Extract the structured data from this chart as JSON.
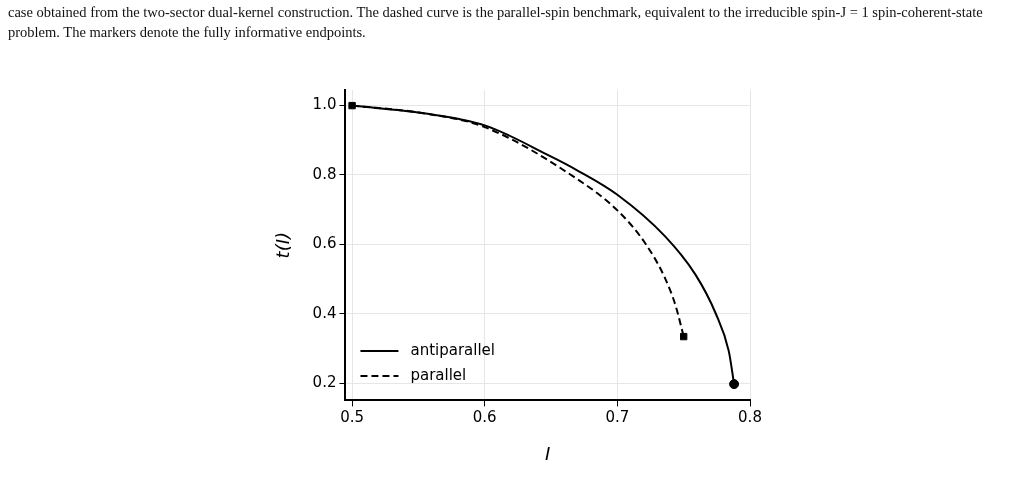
{
  "chart_data": {
    "type": "line",
    "xlabel": "I",
    "ylabel": "t(I)",
    "annotations": [
      "case obtained from the two-sector dual-kernel construction. The dashed curve is the parallel-spin benchmark, equivalent to the irreducible spin-J = 1 spin-coherent-state problem. The markers denote the fully informative endpoints."
    ],
    "xlim": [
      0.495,
      0.8
    ],
    "xticks": [
      0.5,
      0.6,
      0.7,
      0.8
    ],
    "ylim": [
      0.15,
      1.045
    ],
    "yticks": [
      0.2,
      0.4,
      0.6,
      0.8,
      {
        "value": 1,
        "label": "1.0"
      }
    ],
    "grid": true,
    "legend": "bottom left",
    "marker": "none",
    "series": [
      {
        "name": "antiparallel",
        "color": "#000000",
        "line_style": "solid",
        "x": [
          0.5,
          0.554,
          0.6,
          0.649,
          0.669,
          0.7,
          0.736,
          0.759,
          0.774,
          0.784,
          0.788
        ],
        "values": [
          1.0,
          0.978,
          0.943,
          0.855,
          0.815,
          0.743,
          0.623,
          0.512,
          0.402,
          0.292,
          0.197
        ]
      },
      {
        "name": "parallel",
        "color": "#000000",
        "line_style": "dashed",
        "x": [
          0.5,
          0.554,
          0.6,
          0.669,
          0.7,
          0.721,
          0.736,
          0.744,
          0.75
        ],
        "values": [
          1.0,
          0.978,
          0.938,
          0.79,
          0.698,
          0.603,
          0.502,
          0.422,
          0.334
        ]
      },
      {
        "type": "scatter",
        "color": "#000000",
        "marker": "square",
        "x": [
          0.5,
          0.75
        ],
        "values": [
          1.0,
          0.334
        ]
      },
      {
        "type": "scatter",
        "color": "#000000",
        "marker": "circle",
        "x": [
          0.788
        ],
        "values": [
          0.197
        ]
      }
    ]
  }
}
